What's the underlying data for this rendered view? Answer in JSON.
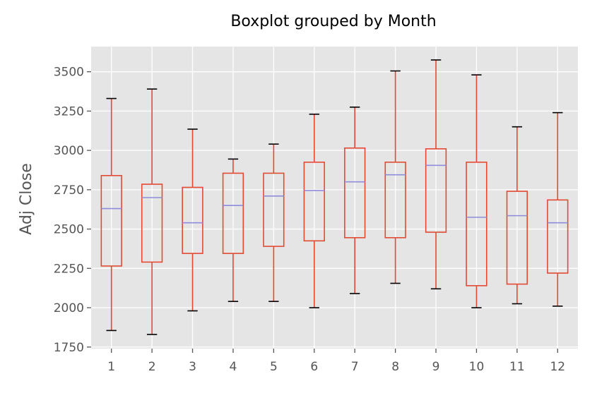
{
  "chart_data": {
    "type": "box",
    "title": "Boxplot grouped by Month",
    "xlabel": "",
    "ylabel": "Adj Close",
    "categories": [
      "1",
      "2",
      "3",
      "4",
      "5",
      "6",
      "7",
      "8",
      "9",
      "10",
      "11",
      "12"
    ],
    "ylim": [
      1740,
      3660
    ],
    "yticks": [
      "1750",
      "2000",
      "2250",
      "2500",
      "2750",
      "3000",
      "3250",
      "3500"
    ],
    "boxes": [
      {
        "whisker_low": 1855,
        "q1": 2265,
        "median": 2630,
        "q3": 2840,
        "whisker_high": 3330
      },
      {
        "whisker_low": 1830,
        "q1": 2290,
        "median": 2700,
        "q3": 2785,
        "whisker_high": 3390
      },
      {
        "whisker_low": 1980,
        "q1": 2345,
        "median": 2540,
        "q3": 2765,
        "whisker_high": 3135
      },
      {
        "whisker_low": 2040,
        "q1": 2345,
        "median": 2650,
        "q3": 2855,
        "whisker_high": 2945
      },
      {
        "whisker_low": 2040,
        "q1": 2390,
        "median": 2710,
        "q3": 2855,
        "whisker_high": 3040
      },
      {
        "whisker_low": 2000,
        "q1": 2425,
        "median": 2745,
        "q3": 2925,
        "whisker_high": 3230
      },
      {
        "whisker_low": 2090,
        "q1": 2445,
        "median": 2800,
        "q3": 3015,
        "whisker_high": 3275
      },
      {
        "whisker_low": 2155,
        "q1": 2445,
        "median": 2845,
        "q3": 2925,
        "whisker_high": 3505
      },
      {
        "whisker_low": 2120,
        "q1": 2480,
        "median": 2905,
        "q3": 3010,
        "whisker_high": 3575
      },
      {
        "whisker_low": 2000,
        "q1": 2140,
        "median": 2575,
        "q3": 2925,
        "whisker_high": 3480
      },
      {
        "whisker_low": 2025,
        "q1": 2150,
        "median": 2585,
        "q3": 2740,
        "whisker_high": 3150
      },
      {
        "whisker_low": 2010,
        "q1": 2220,
        "median": 2540,
        "q3": 2685,
        "whisker_high": 3240
      }
    ],
    "grid": true,
    "colors": {
      "background": "#E5E5E5",
      "grid": "#FFFFFF",
      "box": "#E24A33",
      "median": "#8E8DDB",
      "cap": "#000000"
    }
  }
}
